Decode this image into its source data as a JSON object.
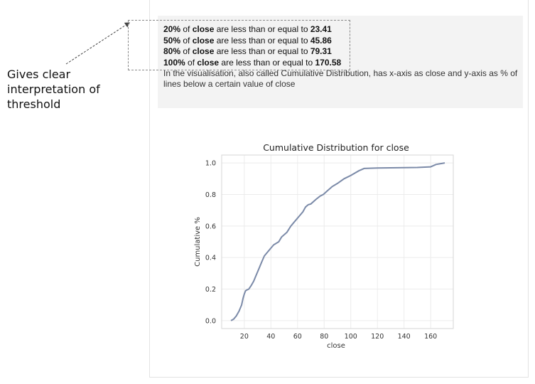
{
  "annotation": {
    "text": "Gives clear interpretation of threshold"
  },
  "summary": {
    "lines": [
      {
        "pct": "20%",
        "mid": " of ",
        "field": "close",
        "rest": " are less than or equal to ",
        "value": "23.41"
      },
      {
        "pct": "50%",
        "mid": " of ",
        "field": "close",
        "rest": " are less than or equal to ",
        "value": "45.86"
      },
      {
        "pct": "80%",
        "mid": " of ",
        "field": "close",
        "rest": " are less than or equal to ",
        "value": "79.31"
      },
      {
        "pct": "100%",
        "mid": " of ",
        "field": "close",
        "rest": " are less than or equal to ",
        "value": "170.58"
      }
    ],
    "description": "In the visualisation, also called Cumulative Distribution, has x-axis as close and y-axis as % of lines below a certain value of close"
  },
  "colors": {
    "line": "#7b8aa8",
    "panel_bg": "#f3f3f3",
    "grid": "#ececec"
  },
  "chart_data": {
    "type": "line",
    "title": "Cumulative Distribution for close",
    "xlabel": "close",
    "ylabel": "Cumulative %",
    "xlim": [
      3,
      177
    ],
    "ylim": [
      -0.05,
      1.05
    ],
    "xticks": [
      20,
      40,
      60,
      80,
      100,
      120,
      140,
      160
    ],
    "yticks": [
      0.0,
      0.2,
      0.4,
      0.6,
      0.8,
      1.0
    ],
    "grid": true,
    "series": [
      {
        "x": [
          10,
          12,
          14,
          16,
          18,
          19,
          20,
          21,
          22,
          23.41,
          25,
          27,
          29,
          31,
          33,
          35,
          37,
          40,
          42,
          45.86,
          48,
          52,
          55,
          58,
          61,
          64,
          66,
          68,
          70,
          74,
          77,
          79.31,
          82,
          86,
          90,
          95,
          100,
          106,
          110,
          120,
          130,
          140,
          150,
          160,
          164,
          170.58
        ],
        "y": [
          0.0,
          0.01,
          0.03,
          0.06,
          0.1,
          0.14,
          0.17,
          0.19,
          0.195,
          0.2,
          0.22,
          0.25,
          0.29,
          0.33,
          0.37,
          0.41,
          0.43,
          0.46,
          0.48,
          0.5,
          0.53,
          0.56,
          0.6,
          0.63,
          0.66,
          0.69,
          0.72,
          0.735,
          0.74,
          0.77,
          0.79,
          0.8,
          0.82,
          0.85,
          0.87,
          0.9,
          0.92,
          0.95,
          0.965,
          0.968,
          0.969,
          0.97,
          0.971,
          0.975,
          0.99,
          1.0
        ]
      }
    ]
  }
}
